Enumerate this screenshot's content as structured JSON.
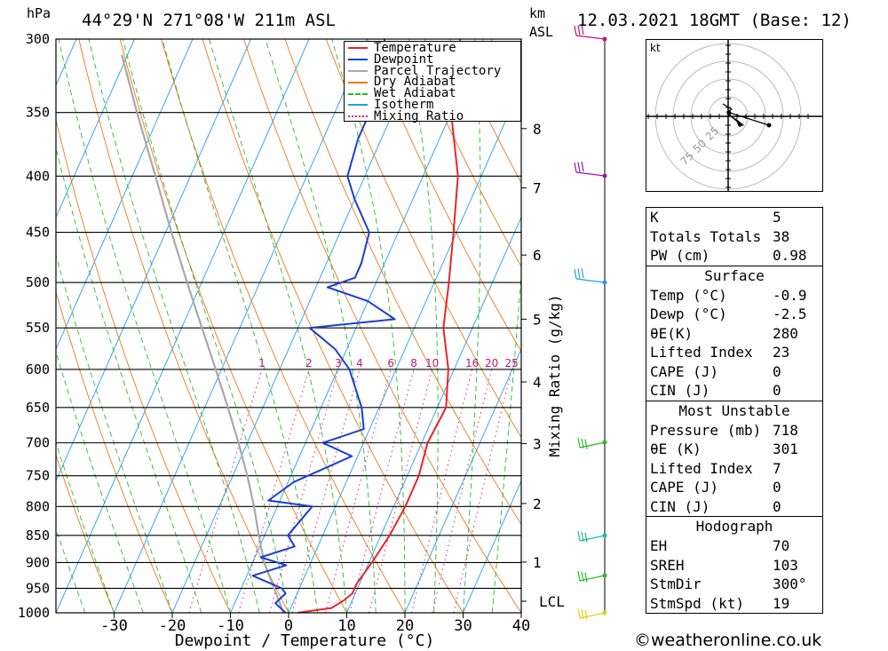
{
  "header": {
    "pressure_unit": "hPa",
    "location": "44°29'N 271°08'W 211m ASL",
    "km_label": "km",
    "asl_label": "ASL",
    "datetime": "12.03.2021 18GMT (Base: 12)"
  },
  "chart_data": {
    "type": "skew-t",
    "xlabel": "Dewpoint / Temperature (°C)",
    "ylabel": "hPa",
    "mixing_ratio_axis_label": "Mixing Ratio (g/kg)",
    "x_ticks": [
      -30,
      -20,
      -10,
      0,
      10,
      20,
      30,
      40
    ],
    "pressure_levels": [
      300,
      350,
      400,
      450,
      500,
      550,
      600,
      650,
      700,
      750,
      800,
      850,
      900,
      950,
      1000
    ],
    "xlim_at_1000hPa": [
      -40,
      40
    ],
    "height_km_ticks": [
      {
        "label": "8",
        "p": 362
      },
      {
        "label": "7",
        "p": 410
      },
      {
        "label": "6",
        "p": 472
      },
      {
        "label": "5",
        "p": 540
      },
      {
        "label": "4",
        "p": 616
      },
      {
        "label": "3",
        "p": 701
      },
      {
        "label": "2",
        "p": 795
      },
      {
        "label": "1",
        "p": 899
      },
      {
        "label": "LCL",
        "p": 976
      }
    ],
    "mixing_ratio_labels": [
      "1",
      "2",
      "3",
      "4",
      "6",
      "8",
      "10",
      "16",
      "20",
      "25"
    ],
    "mixing_ratio_values": [
      1,
      2,
      3,
      4,
      6,
      8,
      10,
      16,
      20,
      25
    ],
    "legend": {
      "placement": "top-right of plot",
      "entries": [
        {
          "name": "Temperature",
          "color": "#e8252a",
          "style": "solid"
        },
        {
          "name": "Dewpoint",
          "color": "#1a3ed8",
          "style": "solid"
        },
        {
          "name": "Parcel Trajectory",
          "color": "#a8a8a8",
          "style": "solid"
        },
        {
          "name": "Dry Adiabat",
          "color": "#e87a1a",
          "style": "solid"
        },
        {
          "name": "Wet Adiabat",
          "color": "#2cb82c",
          "style": "dashed"
        },
        {
          "name": "Isotherm",
          "color": "#1ea0e8",
          "style": "solid"
        },
        {
          "name": "Mixing Ratio",
          "color": "#d0208a",
          "style": "dotted"
        }
      ]
    },
    "temperature": [
      {
        "p": 1000,
        "t": 1.5
      },
      {
        "p": 990,
        "t": 7.0
      },
      {
        "p": 975,
        "t": 8.5
      },
      {
        "p": 960,
        "t": 9.5
      },
      {
        "p": 940,
        "t": 9.5
      },
      {
        "p": 900,
        "t": 10.5
      },
      {
        "p": 850,
        "t": 11.5
      },
      {
        "p": 800,
        "t": 12.0
      },
      {
        "p": 750,
        "t": 12.0
      },
      {
        "p": 700,
        "t": 11.0
      },
      {
        "p": 650,
        "t": 11.5
      },
      {
        "p": 600,
        "t": 9.0
      },
      {
        "p": 550,
        "t": 5.0
      },
      {
        "p": 500,
        "t": 2.5
      },
      {
        "p": 450,
        "t": -0.5
      },
      {
        "p": 400,
        "t": -4.0
      },
      {
        "p": 350,
        "t": -10.0
      },
      {
        "p": 300,
        "t": -14.0
      }
    ],
    "dewpoint": [
      {
        "p": 1000,
        "t": -0.5
      },
      {
        "p": 980,
        "t": -3.0
      },
      {
        "p": 960,
        "t": -2.0
      },
      {
        "p": 950,
        "t": -3.0
      },
      {
        "p": 925,
        "t": -9.0
      },
      {
        "p": 905,
        "t": -4.0
      },
      {
        "p": 890,
        "t": -9.0
      },
      {
        "p": 870,
        "t": -4.0
      },
      {
        "p": 850,
        "t": -6.0
      },
      {
        "p": 800,
        "t": -4.0
      },
      {
        "p": 790,
        "t": -12.0
      },
      {
        "p": 760,
        "t": -9.0
      },
      {
        "p": 720,
        "t": -1.0
      },
      {
        "p": 700,
        "t": -7.0
      },
      {
        "p": 680,
        "t": -1.0
      },
      {
        "p": 650,
        "t": -3.0
      },
      {
        "p": 600,
        "t": -8.0
      },
      {
        "p": 575,
        "t": -12.0
      },
      {
        "p": 550,
        "t": -18.0
      },
      {
        "p": 540,
        "t": -4.0
      },
      {
        "p": 520,
        "t": -10.0
      },
      {
        "p": 505,
        "t": -18.0
      },
      {
        "p": 495,
        "t": -14.0
      },
      {
        "p": 480,
        "t": -14.0
      },
      {
        "p": 450,
        "t": -15.0
      },
      {
        "p": 420,
        "t": -20.0
      },
      {
        "p": 400,
        "t": -23.0
      },
      {
        "p": 370,
        "t": -24.0
      },
      {
        "p": 355,
        "t": -24.0
      },
      {
        "p": 345,
        "t": -27.0
      },
      {
        "p": 320,
        "t": -25.0
      },
      {
        "p": 300,
        "t": -27.0
      }
    ],
    "parcel": [
      {
        "p": 1000,
        "t": -0.9
      },
      {
        "p": 976,
        "t": -2.5
      },
      {
        "p": 900,
        "t": -8.0
      },
      {
        "p": 850,
        "t": -11.0
      },
      {
        "p": 800,
        "t": -14.0
      },
      {
        "p": 750,
        "t": -17.5
      },
      {
        "p": 700,
        "t": -21.5
      },
      {
        "p": 650,
        "t": -26.0
      },
      {
        "p": 600,
        "t": -31.0
      },
      {
        "p": 550,
        "t": -36.5
      },
      {
        "p": 500,
        "t": -42.5
      },
      {
        "p": 450,
        "t": -49.0
      },
      {
        "p": 400,
        "t": -56.0
      },
      {
        "p": 350,
        "t": -64.0
      },
      {
        "p": 310,
        "t": -71.0
      }
    ]
  },
  "hodograph": {
    "unit": "kt",
    "ring_labels": [
      "25",
      "50",
      "75"
    ]
  },
  "indices": {
    "rows": [
      {
        "label": "K",
        "value": "5"
      },
      {
        "label": "Totals Totals",
        "value": "38"
      },
      {
        "label": "PW (cm)",
        "value": "0.98"
      }
    ]
  },
  "surface": {
    "title": "Surface",
    "rows": [
      {
        "label": "Temp (°C)",
        "value": "-0.9"
      },
      {
        "label": "Dewp (°C)",
        "value": "-2.5"
      },
      {
        "label": "θE(K)",
        "value": "280"
      },
      {
        "label": "Lifted Index",
        "value": "23"
      },
      {
        "label": "CAPE (J)",
        "value": "0"
      },
      {
        "label": "CIN (J)",
        "value": "0"
      }
    ]
  },
  "most_unstable": {
    "title": "Most Unstable",
    "rows": [
      {
        "label": "Pressure (mb)",
        "value": "718"
      },
      {
        "label": "θE (K)",
        "value": "301"
      },
      {
        "label": "Lifted Index",
        "value": "7"
      },
      {
        "label": "CAPE (J)",
        "value": "0"
      },
      {
        "label": "CIN (J)",
        "value": "0"
      }
    ]
  },
  "hodograph_params": {
    "title": "Hodograph",
    "rows": [
      {
        "label": "EH",
        "value": "70"
      },
      {
        "label": "SREH",
        "value": "103"
      },
      {
        "label": "StmDir",
        "value": "300°"
      },
      {
        "label": "StmSpd (kt)",
        "value": "19"
      }
    ]
  },
  "footer": "©weatheronline.co.uk"
}
